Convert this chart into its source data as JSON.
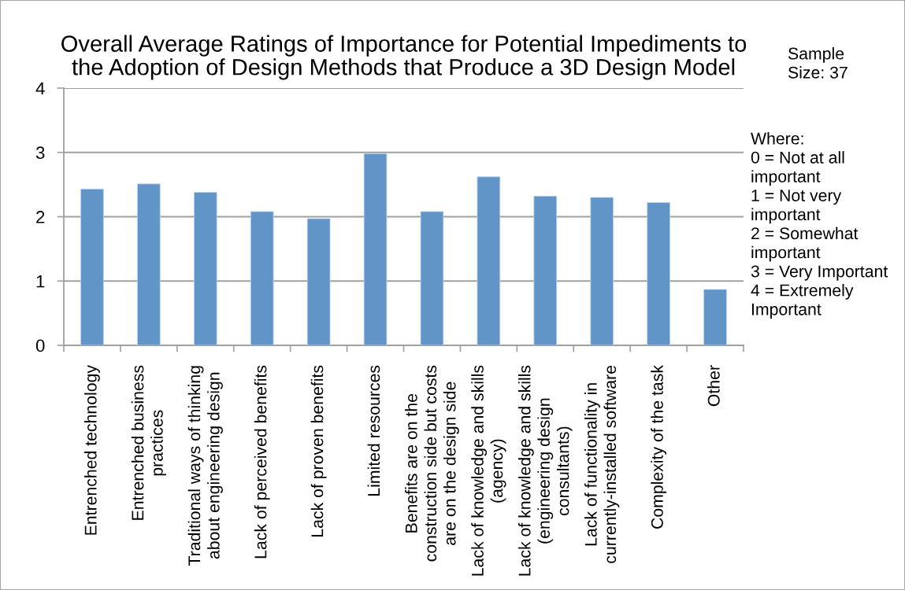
{
  "chart_data": {
    "type": "bar",
    "title": "Overall Average Ratings of Importance for Potential Impediments to\nthe Adoption of Design Methods that Produce a 3D Design Model",
    "categories": [
      "Entrenched technology",
      "Entrenched business\npractices",
      "Traditional ways of thinking\nabout engineering design",
      "Lack of perceived benefits",
      "Lack of proven benefits",
      "Limited resources",
      "Benefits are on the\nconstruction side but costs\nare on the design side",
      "Lack of knowledge and skills\n(agency)",
      "Lack of knowledge and skills\n(engineering design\nconsultants)",
      "Lack of functionality in\ncurrently-installed software",
      "Complexity of the task",
      "Other"
    ],
    "values": [
      2.43,
      2.51,
      2.38,
      2.08,
      1.97,
      2.98,
      2.08,
      2.62,
      2.32,
      2.3,
      2.22,
      0.87
    ],
    "color": "#6195c8",
    "ylim": [
      0,
      4
    ],
    "yticks": [
      0,
      1,
      2,
      3,
      4
    ],
    "grid": "y",
    "annotations": [
      "Sample\nSize: 37",
      "Where:\n0 = Not at all\nimportant\n1 = Not very\nimportant\n2 = Somewhat\nimportant\n3 = Very Important\n4 = Extremely\nImportant"
    ]
  }
}
